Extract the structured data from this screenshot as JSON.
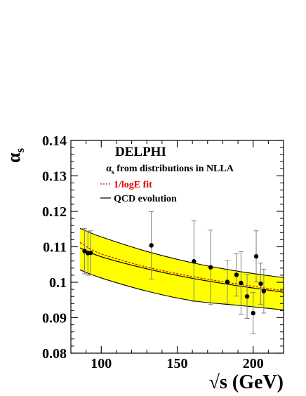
{
  "chart_data": {
    "type": "scatter",
    "ylabel_main": "α",
    "ylabel_sub": "s",
    "xlabel": "√s (GeV)",
    "xlim": [
      80,
      220
    ],
    "ylim": [
      0.08,
      0.14
    ],
    "y_ticks": [
      {
        "value": 0.08,
        "label": "0.08"
      },
      {
        "value": 0.09,
        "label": "0.09"
      },
      {
        "value": 0.1,
        "label": "0.1"
      },
      {
        "value": 0.11,
        "label": "0.11"
      },
      {
        "value": 0.12,
        "label": "0.12"
      },
      {
        "value": 0.13,
        "label": "0.13"
      },
      {
        "value": 0.14,
        "label": "0.14"
      }
    ],
    "x_ticks": [
      {
        "value": 100,
        "label": "100"
      },
      {
        "value": 150,
        "label": "150"
      },
      {
        "value": 200,
        "label": "200"
      }
    ],
    "title": "DELPHI",
    "subtitle_main": "α",
    "subtitle_sub": "s",
    "subtitle_rest": " from distributions in NLLA",
    "legend": [
      {
        "label": "1/logE fit",
        "style": "dotted",
        "color": "#e00000"
      },
      {
        "label": "QCD evolution",
        "style": "solid",
        "color": "#000000"
      }
    ],
    "points": [
      {
        "x": 89,
        "y": 0.1088,
        "err": 0.0064
      },
      {
        "x": 91.2,
        "y": 0.1082,
        "err": 0.0062
      },
      {
        "x": 93,
        "y": 0.1083,
        "err": 0.0062
      },
      {
        "x": 133,
        "y": 0.1104,
        "err": 0.0095
      },
      {
        "x": 161,
        "y": 0.1059,
        "err": 0.0114
      },
      {
        "x": 172,
        "y": 0.1042,
        "err": 0.0105
      },
      {
        "x": 183,
        "y": 0.1001,
        "err": 0.006
      },
      {
        "x": 189,
        "y": 0.1021,
        "err": 0.006
      },
      {
        "x": 192,
        "y": 0.0998,
        "err": 0.0088
      },
      {
        "x": 196,
        "y": 0.096,
        "err": 0.0062
      },
      {
        "x": 200,
        "y": 0.0913,
        "err": 0.0058
      },
      {
        "x": 202,
        "y": 0.1073,
        "err": 0.0072
      },
      {
        "x": 205,
        "y": 0.0996,
        "err": 0.0058
      },
      {
        "x": 207,
        "y": 0.0975,
        "err": 0.0062
      }
    ],
    "band": {
      "color": "#ffff00",
      "upper": [
        [
          86,
          0.1152
        ],
        [
          100,
          0.1128
        ],
        [
          130,
          0.1087
        ],
        [
          160,
          0.1055
        ],
        [
          190,
          0.1031
        ],
        [
          220,
          0.1013
        ]
      ],
      "lower": [
        [
          86,
          0.1035
        ],
        [
          100,
          0.1012
        ],
        [
          130,
          0.0975
        ],
        [
          160,
          0.0948
        ],
        [
          190,
          0.0935
        ],
        [
          220,
          0.0922
        ]
      ]
    },
    "qcd_curve": [
      [
        86,
        0.1097
      ],
      [
        100,
        0.1072
      ],
      [
        130,
        0.1038
      ],
      [
        160,
        0.1011
      ],
      [
        190,
        0.099
      ],
      [
        220,
        0.0972
      ]
    ],
    "fit_curve": [
      [
        86,
        0.1112
      ],
      [
        100,
        0.108
      ],
      [
        130,
        0.1043
      ],
      [
        160,
        0.1016
      ],
      [
        190,
        0.0995
      ],
      [
        220,
        0.0976
      ]
    ]
  }
}
